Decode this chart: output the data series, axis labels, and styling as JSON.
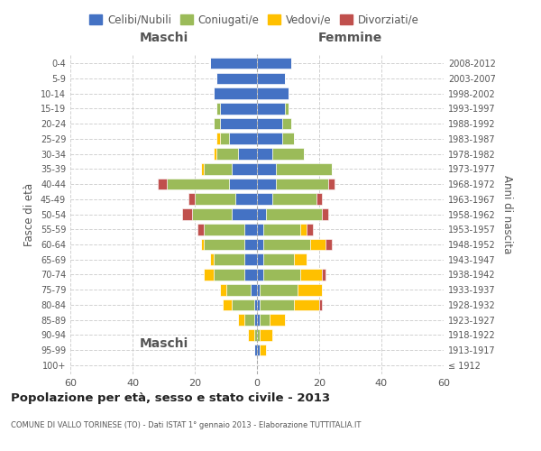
{
  "age_groups": [
    "100+",
    "95-99",
    "90-94",
    "85-89",
    "80-84",
    "75-79",
    "70-74",
    "65-69",
    "60-64",
    "55-59",
    "50-54",
    "45-49",
    "40-44",
    "35-39",
    "30-34",
    "25-29",
    "20-24",
    "15-19",
    "10-14",
    "5-9",
    "0-4"
  ],
  "birth_years": [
    "≤ 1912",
    "1913-1917",
    "1918-1922",
    "1923-1927",
    "1928-1932",
    "1933-1937",
    "1938-1942",
    "1943-1947",
    "1948-1952",
    "1953-1957",
    "1958-1962",
    "1963-1967",
    "1968-1972",
    "1973-1977",
    "1978-1982",
    "1983-1987",
    "1988-1992",
    "1993-1997",
    "1998-2002",
    "2003-2007",
    "2008-2012"
  ],
  "colors": {
    "celibi": "#4472C4",
    "coniugati": "#9BBB59",
    "vedovi": "#FFC000",
    "divorziati": "#C0504D"
  },
  "maschi": {
    "celibi": [
      0,
      1,
      0,
      1,
      1,
      2,
      4,
      4,
      4,
      4,
      8,
      7,
      9,
      8,
      6,
      9,
      12,
      12,
      14,
      13,
      15
    ],
    "coniugati": [
      0,
      0,
      1,
      3,
      7,
      8,
      10,
      10,
      13,
      13,
      13,
      13,
      20,
      9,
      7,
      3,
      2,
      1,
      0,
      0,
      0
    ],
    "vedovi": [
      0,
      0,
      2,
      2,
      3,
      2,
      3,
      1,
      1,
      0,
      0,
      0,
      0,
      1,
      1,
      1,
      0,
      0,
      0,
      0,
      0
    ],
    "divorziati": [
      0,
      0,
      0,
      0,
      0,
      0,
      0,
      0,
      0,
      2,
      3,
      2,
      3,
      0,
      0,
      0,
      0,
      0,
      0,
      0,
      0
    ]
  },
  "femmine": {
    "celibi": [
      0,
      1,
      0,
      1,
      1,
      1,
      2,
      2,
      2,
      2,
      3,
      5,
      6,
      6,
      5,
      8,
      8,
      9,
      10,
      9,
      11
    ],
    "coniugati": [
      0,
      0,
      1,
      3,
      11,
      12,
      12,
      10,
      15,
      12,
      18,
      14,
      17,
      18,
      10,
      4,
      3,
      1,
      0,
      0,
      0
    ],
    "vedovi": [
      0,
      2,
      4,
      5,
      8,
      8,
      7,
      4,
      5,
      2,
      0,
      0,
      0,
      0,
      0,
      0,
      0,
      0,
      0,
      0,
      0
    ],
    "divorziati": [
      0,
      0,
      0,
      0,
      1,
      0,
      1,
      0,
      2,
      2,
      2,
      2,
      2,
      0,
      0,
      0,
      0,
      0,
      0,
      0,
      0
    ]
  },
  "title": "Popolazione per età, sesso e stato civile - 2013",
  "subtitle": "COMUNE DI VALLO TORINESE (TO) - Dati ISTAT 1° gennaio 2013 - Elaborazione TUTTITALIA.IT",
  "xlabel_left": "Maschi",
  "xlabel_right": "Femmine",
  "ylabel_left": "Fasce di età",
  "ylabel_right": "Anni di nascita",
  "xlim": 60,
  "legend_labels": [
    "Celibi/Nubili",
    "Coniugati/e",
    "Vedovi/e",
    "Divorziati/e"
  ],
  "bg_color": "#ffffff",
  "grid_color": "#cccccc"
}
